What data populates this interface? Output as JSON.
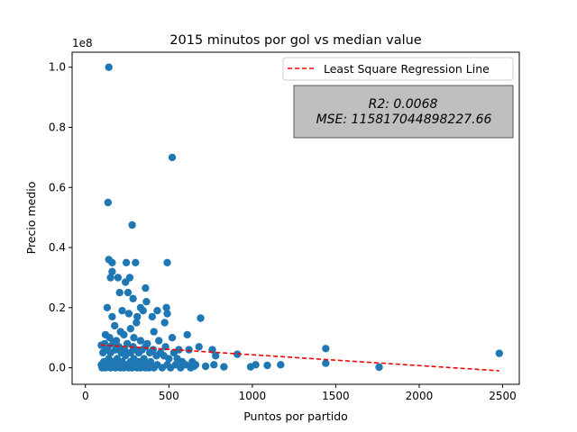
{
  "chart_data": {
    "type": "scatter",
    "title": "2015 minutos por gol vs median value",
    "xlabel": "Puntos por partido",
    "ylabel": "Precio medio",
    "y_offset_label": "1e8",
    "xlim": [
      -80,
      2600
    ],
    "ylim": [
      -0.055,
      1.05
    ],
    "x_ticks": [
      0,
      500,
      1000,
      1500,
      2000,
      2500
    ],
    "x_tick_labels": [
      "0",
      "500",
      "1000",
      "1500",
      "2000",
      "2500"
    ],
    "y_ticks": [
      0.0,
      0.2,
      0.4,
      0.6,
      0.8,
      1.0
    ],
    "y_tick_labels": [
      "0.0",
      "0.2",
      "0.4",
      "0.6",
      "0.8",
      "1.0"
    ],
    "grid": false,
    "legend": {
      "placement": "top-right",
      "entries": [
        "Least Square Regression Line"
      ]
    },
    "annotation": {
      "r2_text": "R2: 0.0068",
      "mse_text": "MSE: 115817044898227.66",
      "placement": "upper-right"
    },
    "colors": {
      "points": "#1f77b4",
      "regression_line": "#ff0000",
      "annotation_box": "#bfbfbf"
    },
    "regression_line": {
      "x": [
        90,
        2480
      ],
      "y": [
        0.076,
        -0.01
      ]
    },
    "series": [
      {
        "values": [
          [
            140,
            1.0
          ],
          [
            520,
            0.7
          ],
          [
            135,
            0.55
          ],
          [
            280,
            0.475
          ],
          [
            140,
            0.36
          ],
          [
            160,
            0.35
          ],
          [
            245,
            0.35
          ],
          [
            300,
            0.35
          ],
          [
            490,
            0.35
          ],
          [
            160,
            0.32
          ],
          [
            150,
            0.3
          ],
          [
            195,
            0.3
          ],
          [
            265,
            0.3
          ],
          [
            360,
            0.265
          ],
          [
            205,
            0.25
          ],
          [
            255,
            0.25
          ],
          [
            285,
            0.23
          ],
          [
            365,
            0.22
          ],
          [
            240,
            0.285
          ],
          [
            130,
            0.2
          ],
          [
            220,
            0.19
          ],
          [
            260,
            0.18
          ],
          [
            310,
            0.17
          ],
          [
            330,
            0.2
          ],
          [
            400,
            0.17
          ],
          [
            430,
            0.19
          ],
          [
            485,
            0.2
          ],
          [
            490,
            0.18
          ],
          [
            610,
            0.11
          ],
          [
            690,
            0.165
          ],
          [
            160,
            0.17
          ],
          [
            175,
            0.14
          ],
          [
            210,
            0.12
          ],
          [
            270,
            0.13
          ],
          [
            305,
            0.15
          ],
          [
            345,
            0.19
          ],
          [
            410,
            0.12
          ],
          [
            475,
            0.15
          ],
          [
            120,
            0.11
          ],
          [
            145,
            0.1
          ],
          [
            185,
            0.09
          ],
          [
            230,
            0.11
          ],
          [
            290,
            0.1
          ],
          [
            330,
            0.09
          ],
          [
            370,
            0.08
          ],
          [
            440,
            0.09
          ],
          [
            480,
            0.07
          ],
          [
            520,
            0.1
          ],
          [
            560,
            0.06
          ],
          [
            620,
            0.06
          ],
          [
            680,
            0.07
          ],
          [
            760,
            0.06
          ],
          [
            910,
            0.045
          ],
          [
            95,
            0.075
          ],
          [
            105,
            0.05
          ],
          [
            115,
            0.08
          ],
          [
            125,
            0.06
          ],
          [
            135,
            0.07
          ],
          [
            150,
            0.05
          ],
          [
            165,
            0.08
          ],
          [
            180,
            0.06
          ],
          [
            200,
            0.07
          ],
          [
            215,
            0.05
          ],
          [
            235,
            0.06
          ],
          [
            250,
            0.08
          ],
          [
            270,
            0.05
          ],
          [
            285,
            0.07
          ],
          [
            300,
            0.06
          ],
          [
            320,
            0.05
          ],
          [
            340,
            0.06
          ],
          [
            360,
            0.07
          ],
          [
            385,
            0.05
          ],
          [
            405,
            0.06
          ],
          [
            425,
            0.04
          ],
          [
            450,
            0.05
          ],
          [
            470,
            0.04
          ],
          [
            500,
            0.03
          ],
          [
            530,
            0.05
          ],
          [
            550,
            0.03
          ],
          [
            580,
            0.02
          ],
          [
            600,
            0.01
          ],
          [
            640,
            0.02
          ],
          [
            660,
            0.01
          ],
          [
            720,
            0.005
          ],
          [
            770,
            0.01
          ],
          [
            780,
            0.04
          ],
          [
            830,
            0.003
          ],
          [
            95,
            0.01
          ],
          [
            100,
            0.0
          ],
          [
            110,
            0.02
          ],
          [
            120,
            0.0
          ],
          [
            130,
            0.01
          ],
          [
            140,
            0.03
          ],
          [
            150,
            0.0
          ],
          [
            160,
            0.02
          ],
          [
            170,
            0.01
          ],
          [
            180,
            0.0
          ],
          [
            190,
            0.03
          ],
          [
            200,
            0.01
          ],
          [
            210,
            0.0
          ],
          [
            220,
            0.02
          ],
          [
            230,
            0.0
          ],
          [
            240,
            0.04
          ],
          [
            250,
            0.01
          ],
          [
            260,
            0.0
          ],
          [
            270,
            0.02
          ],
          [
            280,
            0.0
          ],
          [
            290,
            0.03
          ],
          [
            300,
            0.01
          ],
          [
            310,
            0.0
          ],
          [
            320,
            0.02
          ],
          [
            330,
            0.0
          ],
          [
            340,
            0.01
          ],
          [
            350,
            0.03
          ],
          [
            360,
            0.0
          ],
          [
            370,
            0.01
          ],
          [
            380,
            0.0
          ],
          [
            390,
            0.02
          ],
          [
            410,
            0.0
          ],
          [
            430,
            0.01
          ],
          [
            460,
            0.0
          ],
          [
            490,
            0.01
          ],
          [
            510,
            0.0
          ],
          [
            540,
            0.01
          ],
          [
            570,
            0.0
          ],
          [
            630,
            0.0
          ],
          [
            650,
            0.005
          ],
          [
            990,
            0.003
          ],
          [
            1020,
            0.01
          ],
          [
            1090,
            0.008
          ],
          [
            1170,
            0.01
          ],
          [
            1440,
            0.064
          ],
          [
            1440,
            0.015
          ],
          [
            1760,
            0.002
          ],
          [
            2480,
            0.048
          ]
        ]
      }
    ]
  }
}
